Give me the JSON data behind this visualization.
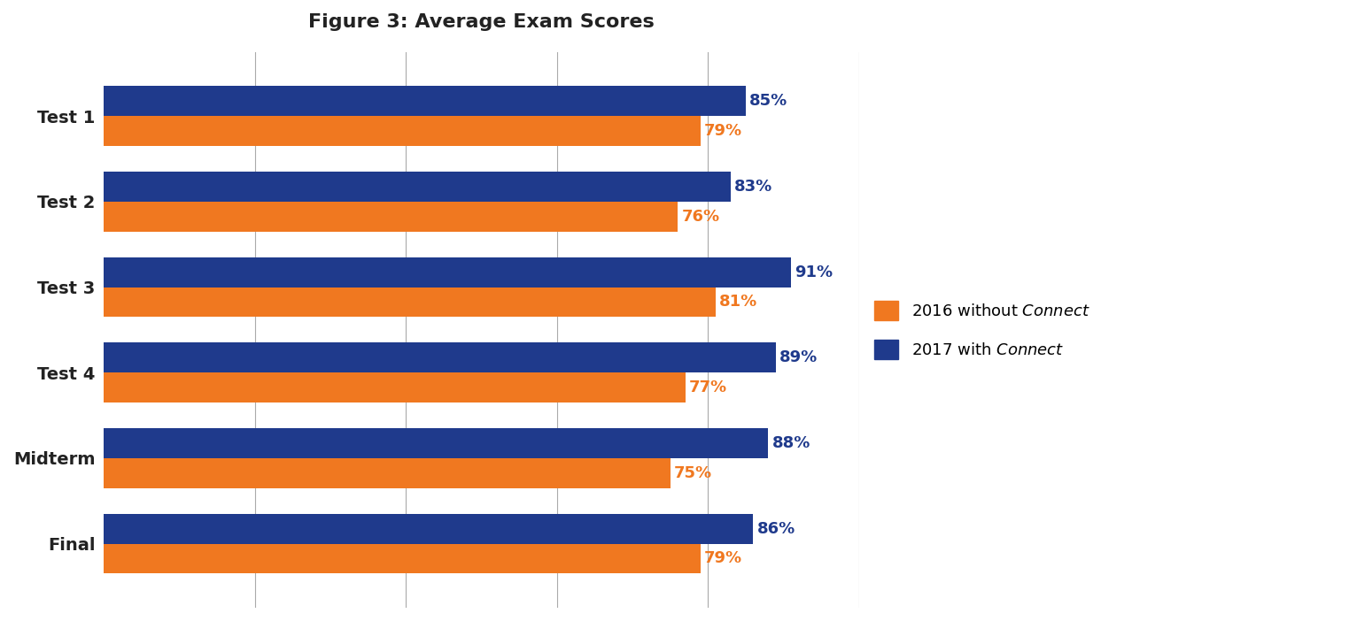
{
  "title": "Figure 3: Average Exam Scores",
  "categories": [
    "Test 1",
    "Test 2",
    "Test 3",
    "Test 4",
    "Midterm",
    "Final"
  ],
  "values_2016": [
    79,
    76,
    81,
    77,
    75,
    79
  ],
  "values_2017": [
    85,
    83,
    91,
    89,
    88,
    86
  ],
  "color_2016": "#F07820",
  "color_2017": "#1F3A8C",
  "background_color": "#FFFFFF",
  "title_fontsize": 16,
  "bar_height": 0.35,
  "xlim": [
    0,
    100
  ],
  "grid_color": "#AAAAAA",
  "yticklabel_fontsize": 14,
  "value_fontsize": 13,
  "legend_fontsize": 13
}
